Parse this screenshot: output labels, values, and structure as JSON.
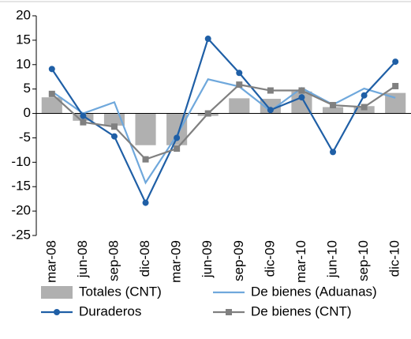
{
  "chart_data": {
    "type": "bar",
    "categories": [
      "mar-08",
      "jun-08",
      "sep-08",
      "dic-08",
      "mar-09",
      "jun-09",
      "sep-09",
      "dic-09",
      "mar-10",
      "jun-10",
      "sep-10",
      "dic-10"
    ],
    "series": [
      {
        "name": "Totales (CNT)",
        "type": "bar",
        "color": "#b0b0b0",
        "values": [
          3.3,
          -1.5,
          -2.5,
          -6.5,
          -6.5,
          -0.5,
          3.1,
          3.0,
          4.5,
          1.3,
          1.5,
          4.2
        ]
      },
      {
        "name": "De bienes (Aduanas)",
        "type": "line",
        "color": "#6fa8dc",
        "marker": "none",
        "values": [
          4.5,
          0,
          2.3,
          -14.2,
          -4.5,
          7.0,
          5.5,
          0.5,
          5.2,
          1.8,
          5.1,
          3.2
        ]
      },
      {
        "name": "Duraderos",
        "type": "line",
        "color": "#1f5fa6",
        "marker": "circle",
        "values": [
          9.1,
          -0.5,
          -4.7,
          -18.3,
          -5.0,
          15.3,
          8.3,
          0.7,
          3.3,
          -7.9,
          3.7,
          10.6
        ]
      },
      {
        "name": "De bienes (CNT)",
        "type": "line",
        "color": "#808080",
        "marker": "square",
        "values": [
          4.0,
          -1.8,
          -2.7,
          -9.4,
          -7.2,
          0.0,
          5.9,
          4.7,
          4.7,
          1.7,
          1.3,
          5.6
        ]
      }
    ],
    "ylim": [
      -25,
      20
    ],
    "yticks": [
      -25,
      -20,
      -15,
      -10,
      -5,
      0,
      5,
      10,
      15,
      20
    ],
    "grid": false
  }
}
